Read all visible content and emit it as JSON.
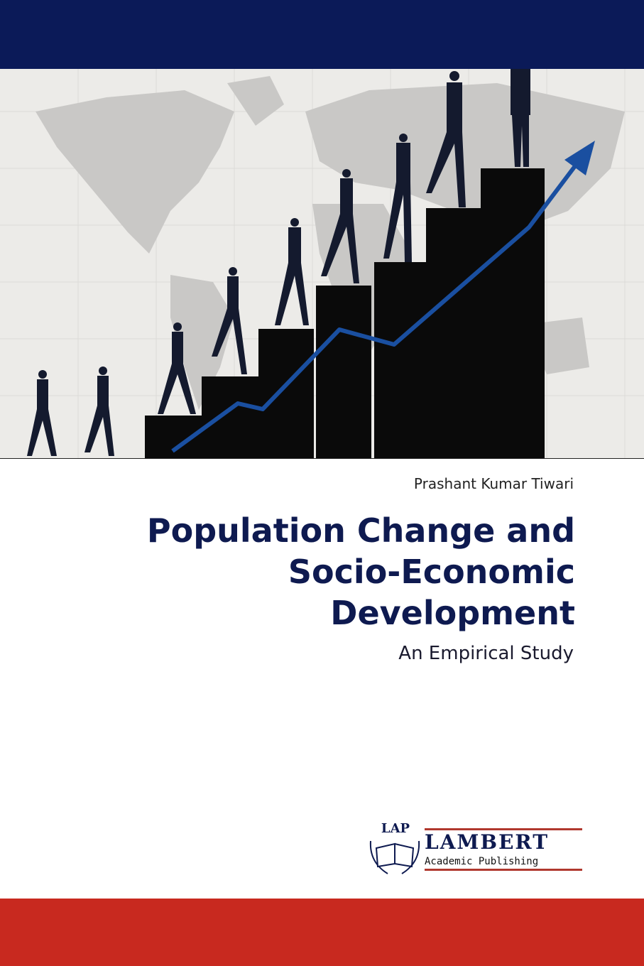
{
  "cover": {
    "author": "Prashant Kumar Tiwari",
    "title_lines": [
      "Population Change and",
      "Socio-Economic",
      "Development"
    ],
    "subtitle": "An Empirical Study",
    "publisher": {
      "logo_mark": "LAP",
      "name": "LAMBERT",
      "tagline": "Academic Publishing"
    }
  },
  "colors": {
    "navy": "#0b1a58",
    "red": "#c8291f",
    "arrow": "#1a4fa0",
    "map_bg": "#ecebe8",
    "land": "#c9c8c6"
  }
}
